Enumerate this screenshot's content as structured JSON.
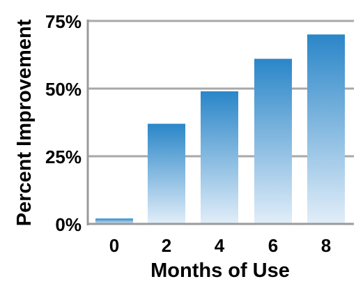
{
  "chart_data": {
    "type": "bar",
    "categories": [
      "0",
      "2",
      "4",
      "6",
      "8"
    ],
    "values": [
      2,
      37,
      49,
      61,
      70
    ],
    "xlabel": "Months of Use",
    "ylabel": "Percent Improvement",
    "ylim": [
      0,
      75
    ],
    "yticks": [
      "0%",
      "25%",
      "50%",
      "75%"
    ],
    "ytick_values": [
      0,
      25,
      50,
      75
    ],
    "grid": true,
    "legend": "none",
    "colors": {
      "bar_top": "#2a86c8",
      "bar_bottom": "#e2eef9",
      "gridline": "#a8a8a8",
      "axis": "#9a9a9a"
    }
  }
}
